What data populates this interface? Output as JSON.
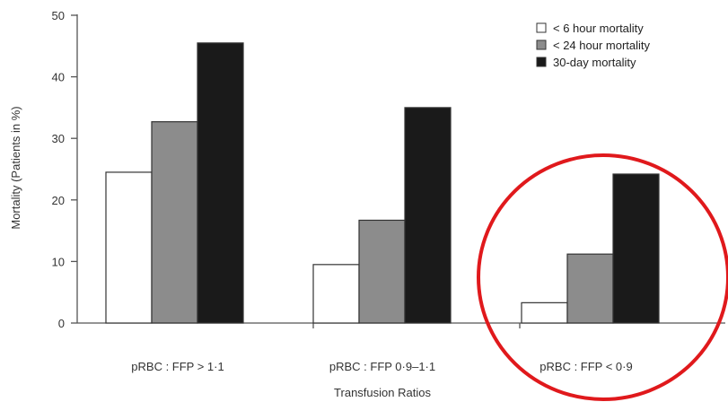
{
  "chart_data": {
    "type": "bar",
    "title": "",
    "xlabel": "Transfusion Ratios",
    "ylabel": "Mortality (Patients in %)",
    "ylim": [
      0,
      50
    ],
    "yticks": [
      0,
      10,
      20,
      30,
      40,
      50
    ],
    "grid": false,
    "legend_position": "top-right",
    "categories": [
      "pRBC : FFP > 1·1",
      "pRBC : FFP 0·9–1·1",
      "pRBC : FFP < 0·9"
    ],
    "series": [
      {
        "name": "< 6 hour mortality",
        "values": [
          24.5,
          9.5,
          3.3
        ],
        "color": "#ffffff"
      },
      {
        "name": "< 24 hour mortality",
        "values": [
          32.7,
          16.7,
          11.2
        ],
        "color": "#8c8c8c"
      },
      {
        "name": "30-day mortality",
        "values": [
          45.5,
          35.0,
          24.2
        ],
        "color": "#1a1a1a"
      }
    ],
    "annotation": {
      "shape": "circle",
      "color": "#e0191c",
      "target_category": "pRBC : FFP < 0·9"
    }
  }
}
